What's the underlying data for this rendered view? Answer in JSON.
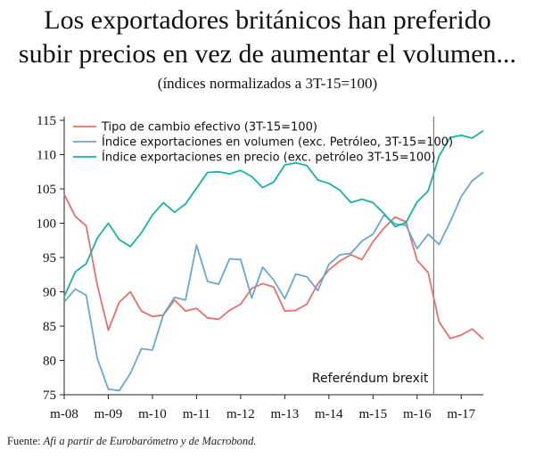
{
  "title_line1": "Los exportadores británicos han preferido",
  "title_line2": "subir precios en vez de aumentar el volumen...",
  "subtitle": "(índices normalizados a 3T-15=100)",
  "source_label": "Fuente:",
  "source_text": "Afi a partir de Eurobarómetro y de Macrobond.",
  "colors": {
    "fx": "#e8706a",
    "volume": "#6aa6d6",
    "price": "#17b3a7",
    "axis": "#222222",
    "vline": "#666666"
  },
  "chart_data": {
    "type": "line",
    "ylim": [
      75,
      115
    ],
    "yticks": [
      75,
      80,
      85,
      90,
      95,
      100,
      105,
      110,
      115
    ],
    "x_index_range": [
      0,
      38
    ],
    "xtick_labels": [
      "m-08",
      "m-09",
      "m-10",
      "m-11",
      "m-12",
      "m-13",
      "m-14",
      "m-15",
      "m-16",
      "m-17"
    ],
    "xtick_positions": [
      0,
      4,
      8,
      12,
      16,
      20,
      24,
      28,
      32,
      36
    ],
    "legend_position": "top-left",
    "annotation": {
      "text": "Referéndum brexit",
      "x": 33.5
    },
    "series": [
      {
        "name": "Tipo de cambio efectivo (3T-15=100)",
        "color_key": "fx",
        "values": [
          104.2,
          101.0,
          99.6,
          91.0,
          84.4,
          88.5,
          90.0,
          87.2,
          86.4,
          86.6,
          88.8,
          87.2,
          87.6,
          86.2,
          86.0,
          87.3,
          88.2,
          90.5,
          91.2,
          90.7,
          87.2,
          87.3,
          88.2,
          91.2,
          93.2,
          94.5,
          95.4,
          94.7,
          97.3,
          99.3,
          100.9,
          100.2,
          94.6,
          92.8,
          85.6,
          83.2,
          83.7,
          84.6,
          83.1
        ]
      },
      {
        "name": "Índice exportaciones en volumen (exc. Petróleo, 3T-15=100)",
        "color_key": "volume",
        "values": [
          88.5,
          90.4,
          89.5,
          80.3,
          75.8,
          75.6,
          78.1,
          81.7,
          81.5,
          86.7,
          89.2,
          88.8,
          96.8,
          91.5,
          91.1,
          94.8,
          94.7,
          89.1,
          93.6,
          91.7,
          89.0,
          92.6,
          92.2,
          90.2,
          94.0,
          95.4,
          95.6,
          97.4,
          98.4,
          101.2,
          99.9,
          99.7,
          96.3,
          98.4,
          96.9,
          100.2,
          103.9,
          106.2,
          107.4
        ]
      },
      {
        "name": "Índice exportaciones en precio (exc. petróleo 3T-15=100)",
        "color_key": "price",
        "values": [
          89.3,
          92.9,
          94.1,
          97.8,
          100.0,
          97.6,
          96.6,
          98.6,
          101.2,
          103.0,
          101.6,
          102.8,
          105.1,
          107.4,
          107.5,
          107.2,
          107.7,
          106.8,
          105.2,
          106.0,
          108.5,
          108.8,
          108.4,
          106.3,
          105.8,
          104.8,
          103.0,
          103.5,
          103.0,
          101.4,
          99.5,
          100.1,
          103.1,
          104.7,
          109.8,
          112.5,
          112.8,
          112.4,
          113.5
        ]
      }
    ]
  }
}
